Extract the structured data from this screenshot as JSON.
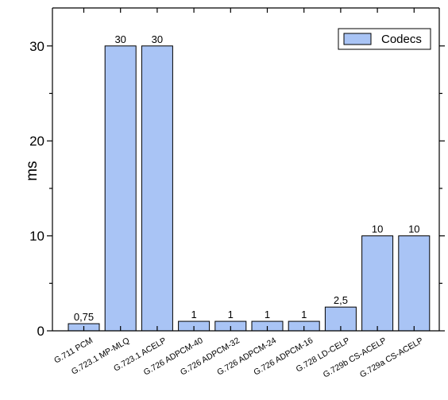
{
  "chart_data": {
    "type": "bar",
    "title": "",
    "xlabel": "",
    "ylabel": "ms",
    "ylim": [
      0,
      34
    ],
    "yticks": [
      0,
      10,
      20,
      30
    ],
    "grid": false,
    "legend_position": "top-right",
    "categories": [
      "G.711 PCM",
      "G.723.1 MP-MLQ",
      "G.723.1 ACELP",
      "G.726 ADPCM-40",
      "G.726 ADPCM-32",
      "G.726 ADPCM-24",
      "G.726 ADPCM-16",
      "G.728 LD-CELP",
      "G.729b CS-ACELP",
      "G.729a CS-ACELP"
    ],
    "series": [
      {
        "name": "Codecs",
        "color": "#a9c4f5",
        "values": [
          0.75,
          30,
          30,
          1,
          1,
          1,
          1,
          2.5,
          10,
          10
        ],
        "labels": [
          "0,75",
          "30",
          "30",
          "1",
          "1",
          "1",
          "1",
          "2,5",
          "10",
          "10"
        ]
      }
    ]
  }
}
